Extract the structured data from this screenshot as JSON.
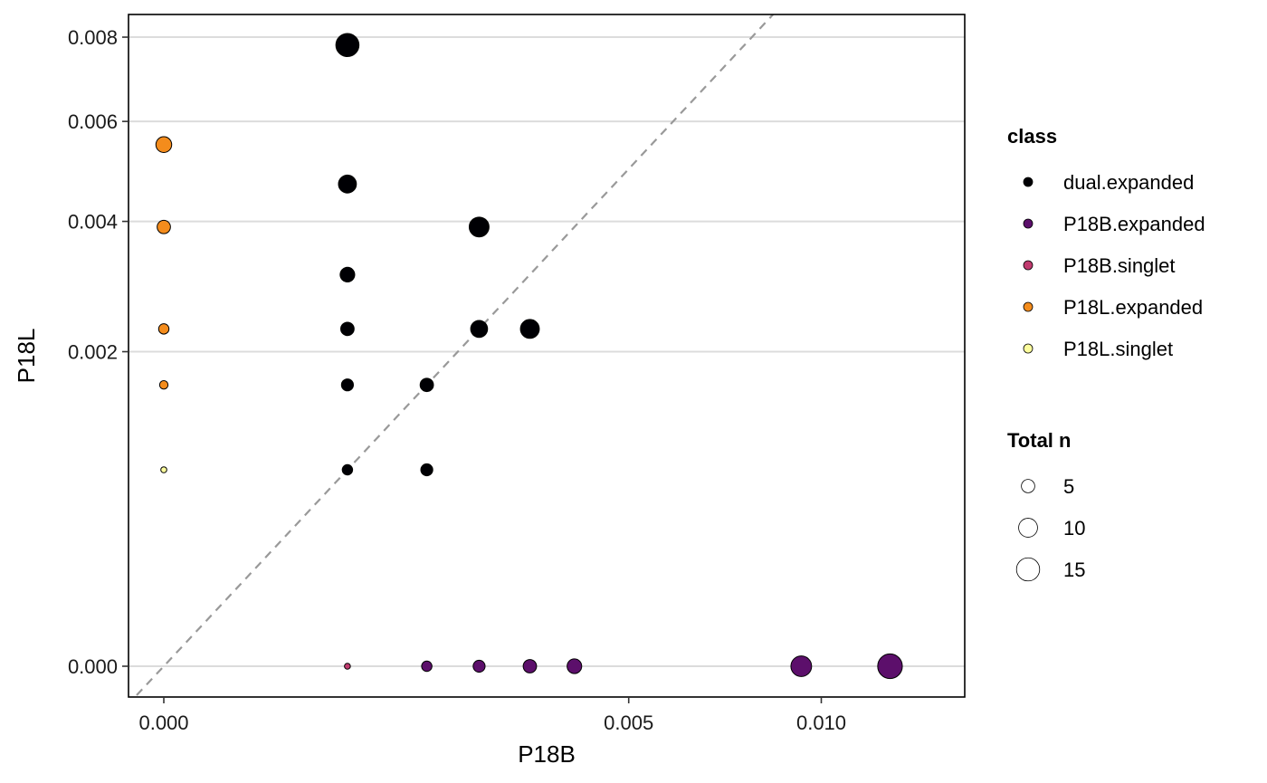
{
  "chart_data": {
    "type": "scatter",
    "xlabel": "P18B",
    "ylabel": "P18L",
    "x_ticks": [
      {
        "value": 0.0,
        "label": "0.000"
      },
      {
        "value": 0.005,
        "label": "0.005"
      },
      {
        "value": 0.01,
        "label": "0.010"
      }
    ],
    "y_ticks": [
      {
        "value": 0.0,
        "label": "0.000"
      },
      {
        "value": 0.002,
        "label": "0.002"
      },
      {
        "value": 0.004,
        "label": "0.004"
      },
      {
        "value": 0.006,
        "label": "0.006"
      },
      {
        "value": 0.008,
        "label": "0.008"
      }
    ],
    "x_scale": "sqrt",
    "y_scale": "sqrt",
    "xlim": [
      0,
      0.0122
    ],
    "ylim": [
      0,
      0.0084
    ],
    "grid": "horizontal major",
    "reference_line": "y = x (dashed grey)",
    "legend_position": "right",
    "legends": {
      "class": {
        "title": "class",
        "entries": [
          {
            "label": "dual.expanded",
            "color": "#000004"
          },
          {
            "label": "P18B.expanded",
            "color": "#5c0f6b"
          },
          {
            "label": "P18B.singlet",
            "color": "#c13b6f"
          },
          {
            "label": "P18L.expanded",
            "color": "#f48c1c"
          },
          {
            "label": "P18L.singlet",
            "color": "#fcfd9d"
          }
        ]
      },
      "size": {
        "title": "Total n",
        "entries": [
          {
            "label": "5",
            "n": 5
          },
          {
            "label": "10",
            "n": 10
          },
          {
            "label": "15",
            "n": 15
          }
        ]
      }
    },
    "points": [
      {
        "x": 0.0,
        "y": 0.0055,
        "n": 7,
        "class": "P18L.expanded"
      },
      {
        "x": 0.0,
        "y": 0.0039,
        "n": 5,
        "class": "P18L.expanded"
      },
      {
        "x": 0.0,
        "y": 0.0023,
        "n": 3,
        "class": "P18L.expanded"
      },
      {
        "x": 0.0,
        "y": 0.0016,
        "n": 2,
        "class": "P18L.expanded"
      },
      {
        "x": 0.0,
        "y": 0.00078,
        "n": 1,
        "class": "P18L.singlet"
      },
      {
        "x": 0.00078,
        "y": 0.0078,
        "n": 15,
        "class": "dual.expanded"
      },
      {
        "x": 0.00078,
        "y": 0.0047,
        "n": 9,
        "class": "dual.expanded"
      },
      {
        "x": 0.00078,
        "y": 0.0031,
        "n": 6,
        "class": "dual.expanded"
      },
      {
        "x": 0.00078,
        "y": 0.0023,
        "n": 5,
        "class": "dual.expanded"
      },
      {
        "x": 0.00078,
        "y": 0.0016,
        "n": 4,
        "class": "dual.expanded"
      },
      {
        "x": 0.00078,
        "y": 0.00078,
        "n": 3,
        "class": "dual.expanded"
      },
      {
        "x": 0.0016,
        "y": 0.0016,
        "n": 5,
        "class": "dual.expanded"
      },
      {
        "x": 0.0016,
        "y": 0.00078,
        "n": 4,
        "class": "dual.expanded"
      },
      {
        "x": 0.0023,
        "y": 0.0039,
        "n": 11,
        "class": "dual.expanded"
      },
      {
        "x": 0.0023,
        "y": 0.0023,
        "n": 8,
        "class": "dual.expanded"
      },
      {
        "x": 0.0031,
        "y": 0.0023,
        "n": 10,
        "class": "dual.expanded"
      },
      {
        "x": 0.00078,
        "y": 0.0,
        "n": 1,
        "class": "P18B.singlet"
      },
      {
        "x": 0.0016,
        "y": 0.0,
        "n": 3,
        "class": "P18B.expanded"
      },
      {
        "x": 0.0023,
        "y": 0.0,
        "n": 4,
        "class": "P18B.expanded"
      },
      {
        "x": 0.0031,
        "y": 0.0,
        "n": 5,
        "class": "P18B.expanded"
      },
      {
        "x": 0.0039,
        "y": 0.0,
        "n": 6,
        "class": "P18B.expanded"
      },
      {
        "x": 0.0094,
        "y": 0.0,
        "n": 12,
        "class": "P18B.expanded"
      },
      {
        "x": 0.0122,
        "y": 0.0,
        "n": 17,
        "class": "P18B.expanded"
      }
    ]
  }
}
